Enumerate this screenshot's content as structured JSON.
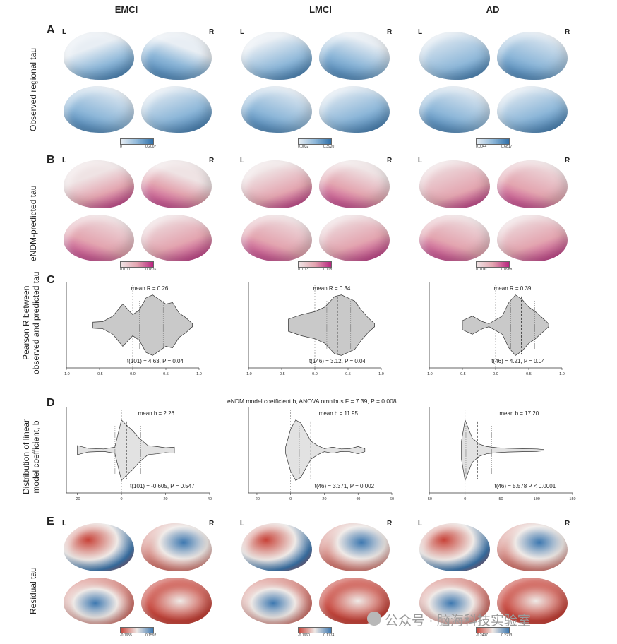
{
  "columns": [
    "EMCI",
    "LMCI",
    "AD"
  ],
  "panels": {
    "A": {
      "letter": "A",
      "ylabel": "Observed regional tau",
      "L": "L",
      "R": "R",
      "colorbars": [
        {
          "min": "0",
          "max": "0.2007"
        },
        {
          "min": "0.0032",
          "max": "0.3920"
        },
        {
          "min": "0.0044",
          "max": "0.6817"
        }
      ],
      "colors": {
        "light": "#e8eef4",
        "mid": "#8fb8d9",
        "dark": "#2f6fa8"
      }
    },
    "B": {
      "letter": "B",
      "ylabel": "eNDM-predicted tau",
      "L": "L",
      "R": "R",
      "colorbars": [
        {
          "min": "0.0111",
          "max": "0.1676"
        },
        {
          "min": "0.0113",
          "max": "0.1181"
        },
        {
          "min": "0.0100",
          "max": "0.0988"
        }
      ],
      "colors": {
        "light": "#efe3e4",
        "mid": "#e3a5b0",
        "dark": "#b8237f"
      }
    },
    "C": {
      "letter": "C",
      "ylabel_line1": "Pearson R between",
      "ylabel_line2": "observed and predicted tau",
      "plots": [
        {
          "mean": "mean R = 0.26",
          "test": "t(101) = 4.63, P = 0.04",
          "ticks": [
            "-1.0",
            "-0.5",
            "0.0",
            "0.5",
            "1.0"
          ]
        },
        {
          "mean": "mean R = 0.34",
          "test": "t(146) = 3.12, P = 0.04",
          "ticks": [
            "-1.0",
            "-0.5",
            "0.0",
            "0.5",
            "1.0"
          ]
        },
        {
          "mean": "mean R = 0.39",
          "test": "t(46) = 4.21, P = 0.04",
          "ticks": [
            "-1.0",
            "-0.5",
            "0.0",
            "0.5",
            "1.0"
          ]
        }
      ]
    },
    "D": {
      "letter": "D",
      "ylabel_line1": "Distribution of linear",
      "ylabel_line2": "model coefficient, b",
      "anova": "eNDM model coefficient b, ANOVA omnibus F = 7.39, P = 0.008",
      "plots": [
        {
          "mean": "mean b = 2.26",
          "test": "t(101) = -0.605, P = 0.547",
          "ticks": [
            "-20",
            "0",
            "20",
            "40"
          ]
        },
        {
          "mean": "mean b = 11.95",
          "test": "t(46) = 3.371, P = 0.002",
          "ticks": [
            "-20",
            "0",
            "20",
            "40",
            "60"
          ]
        },
        {
          "mean": "mean b = 17.20",
          "test": "t(46) = 5.578 P < 0.0001",
          "ticks": [
            "-50",
            "0",
            "50",
            "100",
            "150"
          ]
        }
      ]
    },
    "E": {
      "letter": "E",
      "ylabel": "Residual tau",
      "L": "L",
      "R": "R",
      "colorbars": [
        {
          "min": "-0.1955",
          "max": "0.1592"
        },
        {
          "min": "-0.1960",
          "max": "0.1774"
        },
        {
          "min": "-0.2497",
          "max": "0.2213"
        }
      ],
      "colors": {
        "red": "#c8443a",
        "white": "#efe9e6",
        "blue": "#3d78b0"
      }
    }
  },
  "chart_data": [
    {
      "type": "violin",
      "title": "EMCI",
      "ylabel": "Pearson R between observed and predicted tau",
      "xlim": [
        -1.0,
        1.0
      ],
      "mean": 0.26,
      "ref_line": 0.0,
      "profile_x": [
        -0.6,
        -0.45,
        -0.3,
        -0.15,
        0.0,
        0.1,
        0.2,
        0.3,
        0.4,
        0.5,
        0.6,
        0.7,
        0.8,
        0.9
      ],
      "profile_w": [
        0.1,
        0.12,
        0.3,
        0.7,
        0.35,
        0.5,
        0.9,
        1.0,
        0.85,
        0.7,
        0.75,
        0.4,
        0.25,
        0.05
      ]
    },
    {
      "type": "violin",
      "title": "LMCI",
      "ylabel": "Pearson R between observed and predicted tau",
      "xlim": [
        -1.0,
        1.0
      ],
      "mean": 0.34,
      "ref_line": 0.0,
      "profile_x": [
        -0.4,
        -0.2,
        0.0,
        0.15,
        0.3,
        0.4,
        0.5,
        0.6,
        0.7,
        0.8,
        0.9
      ],
      "profile_w": [
        0.2,
        0.35,
        0.45,
        0.6,
        0.95,
        1.0,
        0.9,
        0.8,
        0.5,
        0.25,
        0.05
      ]
    },
    {
      "type": "violin",
      "title": "AD",
      "ylabel": "Pearson R between observed and predicted tau",
      "xlim": [
        -1.0,
        1.0
      ],
      "mean": 0.39,
      "ref_line": 0.0,
      "profile_x": [
        -0.5,
        -0.35,
        -0.2,
        -0.1,
        0.1,
        0.2,
        0.3,
        0.4,
        0.5,
        0.6,
        0.7,
        0.8
      ],
      "profile_w": [
        0.15,
        0.3,
        0.12,
        0.05,
        0.3,
        0.75,
        1.0,
        0.85,
        0.6,
        0.45,
        0.25,
        0.05
      ]
    },
    {
      "type": "violin",
      "title": "EMCI",
      "ylabel": "Distribution of linear model coefficient, b",
      "xlim": [
        -25,
        40
      ],
      "mean": 2.26,
      "ref_line": 0,
      "profile_x": [
        -20,
        -15,
        -8,
        -3,
        0,
        2,
        5,
        8,
        12,
        16,
        20,
        24
      ],
      "profile_w": [
        0.15,
        0.06,
        0.04,
        0.1,
        1.0,
        0.85,
        0.65,
        0.4,
        0.15,
        0.12,
        0.08,
        0.1
      ]
    },
    {
      "type": "violin",
      "title": "LMCI",
      "ylabel": "Distribution of linear model coefficient, b",
      "xlim": [
        -25,
        60
      ],
      "mean": 11.95,
      "ref_line": 0,
      "profile_x": [
        -3,
        0,
        3,
        6,
        9,
        12,
        16,
        20,
        25,
        30,
        35,
        40,
        44
      ],
      "profile_w": [
        0.1,
        0.7,
        1.0,
        0.9,
        0.6,
        0.3,
        0.15,
        0.05,
        0.1,
        0.04,
        0.05,
        0.12,
        0.05
      ]
    },
    {
      "type": "violin",
      "title": "AD",
      "ylabel": "Distribution of linear model coefficient, b",
      "xlim": [
        -50,
        150
      ],
      "mean": 17.2,
      "ref_line": 0,
      "profile_x": [
        -5,
        0,
        5,
        10,
        20,
        30,
        45,
        60,
        80,
        100,
        110
      ],
      "profile_w": [
        0.3,
        1.0,
        0.7,
        0.4,
        0.2,
        0.12,
        0.08,
        0.06,
        0.05,
        0.04,
        0.02
      ]
    }
  ]
}
